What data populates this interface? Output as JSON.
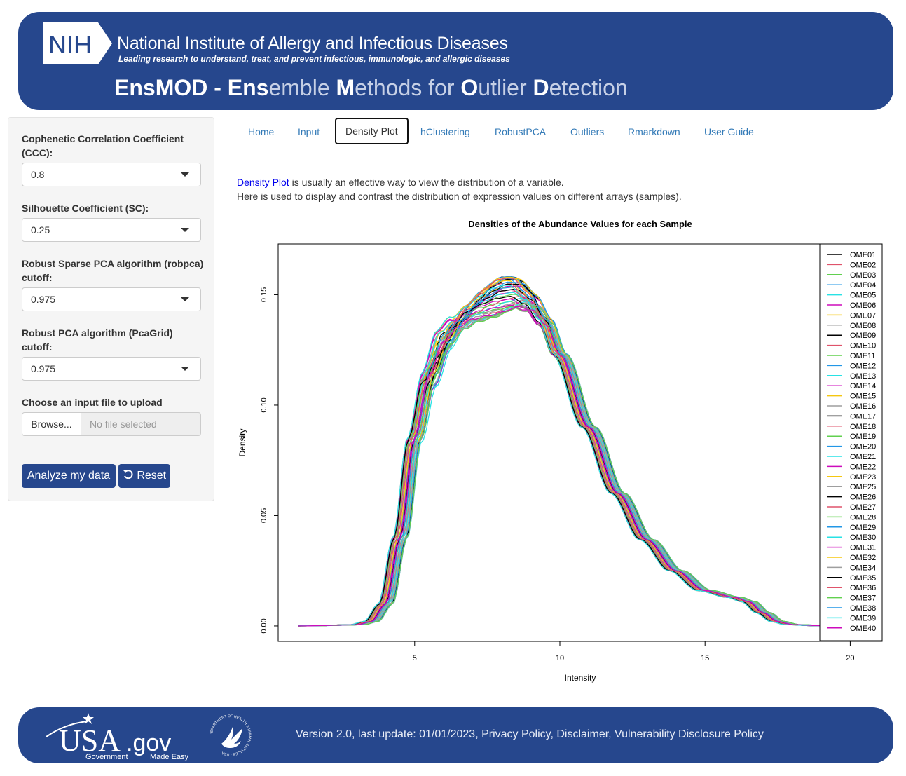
{
  "header": {
    "logo_text": "NIH",
    "institute": "National Institute of Allergy and Infectious Diseases",
    "tagline": "Leading research to understand, treat, and prevent infectious, immunologic, and allergic diseases",
    "title_parts": [
      {
        "text": "EnsMOD - Ens",
        "style": "b"
      },
      {
        "text": "emble ",
        "style": "l"
      },
      {
        "text": "M",
        "style": "b"
      },
      {
        "text": "ethods for ",
        "style": "l"
      },
      {
        "text": "O",
        "style": "b"
      },
      {
        "text": "utlier ",
        "style": "l"
      },
      {
        "text": "D",
        "style": "b"
      },
      {
        "text": "etection",
        "style": "l"
      }
    ]
  },
  "sidebar": {
    "ccc_label": "Cophenetic Correlation Coefficient (CCC):",
    "ccc_value": "0.8",
    "sc_label": "Silhouette Coefficient (SC):",
    "sc_value": "0.25",
    "robpca_label": "Robust Sparse PCA algorithm (robpca) cutoff:",
    "robpca_value": "0.975",
    "pcagrid_label": "Robust PCA algorithm (PcaGrid) cutoff:",
    "pcagrid_value": "0.975",
    "file_label": "Choose an input file to upload",
    "browse_label": "Browse...",
    "file_placeholder": "No file selected",
    "analyze_label": "Analyze my data",
    "reset_label": "Reset"
  },
  "tabs": [
    "Home",
    "Input",
    "Density Plot",
    "hClustering",
    "RobustPCA",
    "Outliers",
    "Rmarkdown",
    "User Guide"
  ],
  "active_tab": "Density Plot",
  "description": {
    "highlight": "Density Plot",
    "line1_rest": " is usually an effective way to view the distribution of a variable.",
    "line2": "Here is used to display and contrast the distribution of expression values on different arrays (samples)."
  },
  "chart_data": {
    "type": "line",
    "title": "Densities of the Abundance Values for each Sample",
    "xlabel": "Intensity",
    "ylabel": "Density",
    "xlim": [
      0.3,
      21.1
    ],
    "ylim": [
      -0.007,
      0.173
    ],
    "xticks": [
      5,
      10,
      15,
      20
    ],
    "yticks": [
      0.0,
      0.05,
      0.1,
      0.15
    ],
    "ytick_labels": [
      "0.00",
      "0.05",
      "0.10",
      "0.15"
    ],
    "grid": false,
    "legend_position": "right",
    "series_colors": [
      "#000000",
      "#df536b",
      "#61d04f",
      "#2297e6",
      "#28e2e5",
      "#cd0bbc",
      "#f5c710",
      "#9e9e9e"
    ],
    "representative_curve": {
      "x": [
        1.0,
        3.0,
        3.5,
        4.0,
        4.5,
        5.0,
        5.5,
        6.0,
        6.5,
        7.0,
        7.5,
        8.0,
        8.5,
        9.0,
        9.5,
        10.0,
        11.0,
        12.0,
        13.0,
        14.0,
        15.0,
        16.0,
        16.5,
        17.0,
        17.5,
        18.0,
        19.0,
        20.0
      ],
      "y": [
        0.0,
        0.0005,
        0.002,
        0.01,
        0.04,
        0.085,
        0.113,
        0.128,
        0.137,
        0.143,
        0.147,
        0.15,
        0.151,
        0.147,
        0.138,
        0.123,
        0.09,
        0.06,
        0.039,
        0.025,
        0.016,
        0.013,
        0.011,
        0.006,
        0.002,
        0.0006,
        0.0001,
        0.0
      ]
    },
    "series": [
      {
        "name": "OME01"
      },
      {
        "name": "OME02"
      },
      {
        "name": "OME03"
      },
      {
        "name": "OME04"
      },
      {
        "name": "OME05"
      },
      {
        "name": "OME06"
      },
      {
        "name": "OME07"
      },
      {
        "name": "OME08"
      },
      {
        "name": "OME09"
      },
      {
        "name": "OME10"
      },
      {
        "name": "OME11"
      },
      {
        "name": "OME12"
      },
      {
        "name": "OME13"
      },
      {
        "name": "OME14"
      },
      {
        "name": "OME15"
      },
      {
        "name": "OME16"
      },
      {
        "name": "OME17"
      },
      {
        "name": "OME18"
      },
      {
        "name": "OME19"
      },
      {
        "name": "OME20"
      },
      {
        "name": "OME21"
      },
      {
        "name": "OME22"
      },
      {
        "name": "OME23"
      },
      {
        "name": "OME25"
      },
      {
        "name": "OME26"
      },
      {
        "name": "OME27"
      },
      {
        "name": "OME28"
      },
      {
        "name": "OME29"
      },
      {
        "name": "OME30"
      },
      {
        "name": "OME31"
      },
      {
        "name": "OME32"
      },
      {
        "name": "OME34"
      },
      {
        "name": "OME35"
      },
      {
        "name": "OME36"
      },
      {
        "name": "OME37"
      },
      {
        "name": "OME38"
      },
      {
        "name": "OME39"
      },
      {
        "name": "OME40"
      }
    ]
  },
  "footer": {
    "usa_main": "USA",
    "usa_gov": ".gov",
    "usa_sub1": "Government",
    "usa_sub2": "Made Easy",
    "hhs_ring_text": "DEPARTMENT OF HEALTH & HUMAN SERVICES · USA",
    "text": "Version 2.0, last update: 01/01/2023, Privacy Policy, Disclaimer, Vulnerability Disclosure Policy"
  }
}
